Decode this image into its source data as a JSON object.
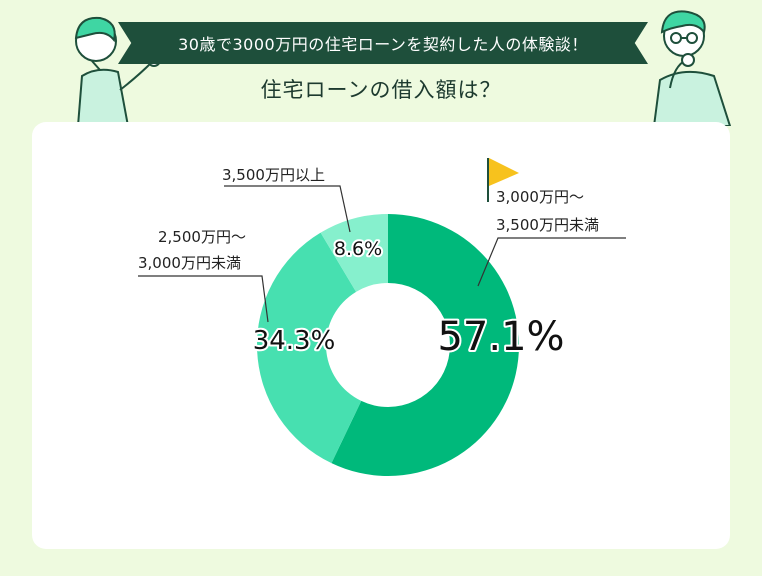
{
  "header": {
    "banner_text": "30歳で3000万円の住宅ローンを契約した人の体験談！",
    "subtitle": "住宅ローンの借入額は？"
  },
  "colors": {
    "banner_bg": "#1e4f3b",
    "page_bg": "#eefadf",
    "slice_1": "#00b97b",
    "slice_2": "#47e0b0",
    "slice_3": "#86f0cd",
    "flag": "#f7c21d"
  },
  "icons": [
    "person-pointing-icon",
    "person-thinking-icon",
    "flag-icon"
  ],
  "chart_data": {
    "type": "pie",
    "donut": true,
    "title": "住宅ローンの借入額は？",
    "slices": [
      {
        "label_line1": "3,000万円〜",
        "label_line2": "3,500万円未満",
        "value": 57.1,
        "value_label": "57.1%",
        "color": "#00b97b"
      },
      {
        "label_line1": "2,500万円〜",
        "label_line2": "3,000万円未満",
        "value": 34.3,
        "value_label": "34.3%",
        "color": "#47e0b0"
      },
      {
        "label_line1": "3,500万円以上",
        "label_line2": "",
        "value": 8.6,
        "value_label": "8.6%",
        "color": "#86f0cd"
      }
    ]
  }
}
